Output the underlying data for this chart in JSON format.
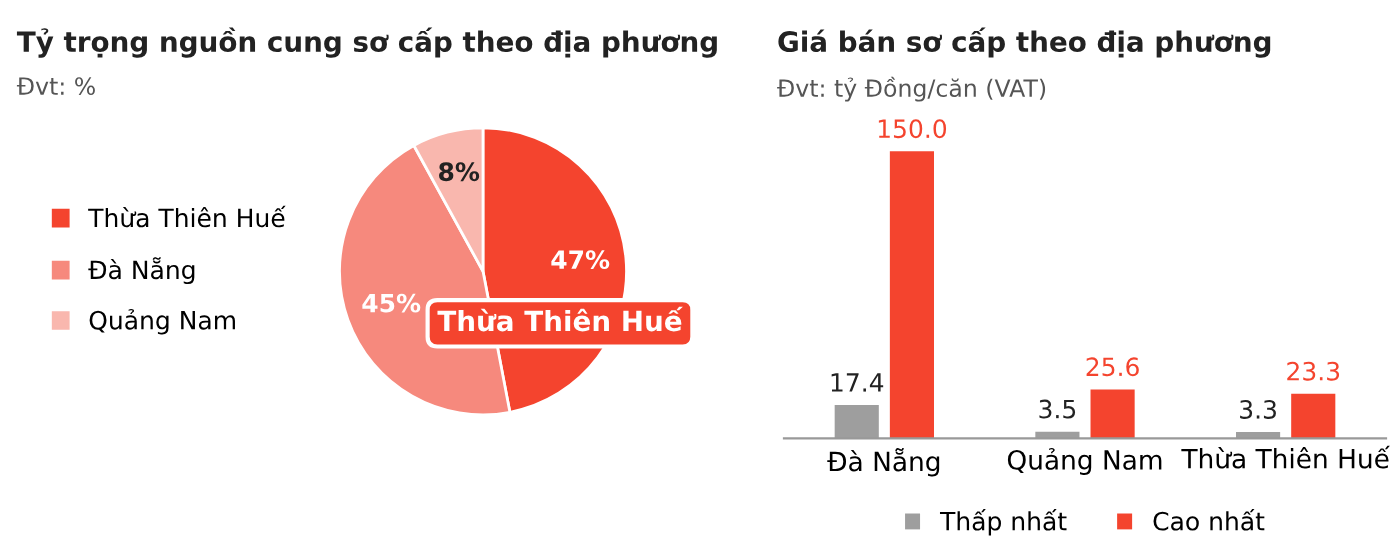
{
  "chart_data": [
    {
      "type": "pie",
      "title": "Tỷ trọng nguồn cung sơ cấp theo địa phương",
      "subtitle": "Đvt: %",
      "categories": [
        "Thừa Thiên Huế",
        "Đà Nẵng",
        "Quảng Nam"
      ],
      "values": [
        47,
        45,
        8
      ],
      "colors": [
        "#f4442e",
        "#f6897d",
        "#f9b7ae"
      ],
      "value_labels": [
        "47%",
        "45%",
        "8%"
      ],
      "legend": "left",
      "annotations": [
        "Thừa Thiên Huế"
      ]
    },
    {
      "type": "bar",
      "title": "Giá bán sơ cấp theo địa phương",
      "subtitle": "Đvt: tỷ Đồng/căn (VAT)",
      "categories": [
        "Đà Nẵng",
        "Quảng Nam",
        "Thừa Thiên Huế"
      ],
      "series": [
        {
          "name": "Thấp nhất",
          "color": "#9e9e9e",
          "values": [
            17.4,
            3.5,
            3.3
          ],
          "value_labels": [
            "17.4",
            "3.5",
            "3.3"
          ]
        },
        {
          "name": "Cao nhất",
          "color": "#f4442e",
          "values": [
            150.0,
            25.6,
            23.3
          ],
          "value_labels": [
            "150.0",
            "25.6",
            "23.3"
          ]
        }
      ],
      "legend": "bottom",
      "tick_labels": "x",
      "grid": false
    }
  ]
}
